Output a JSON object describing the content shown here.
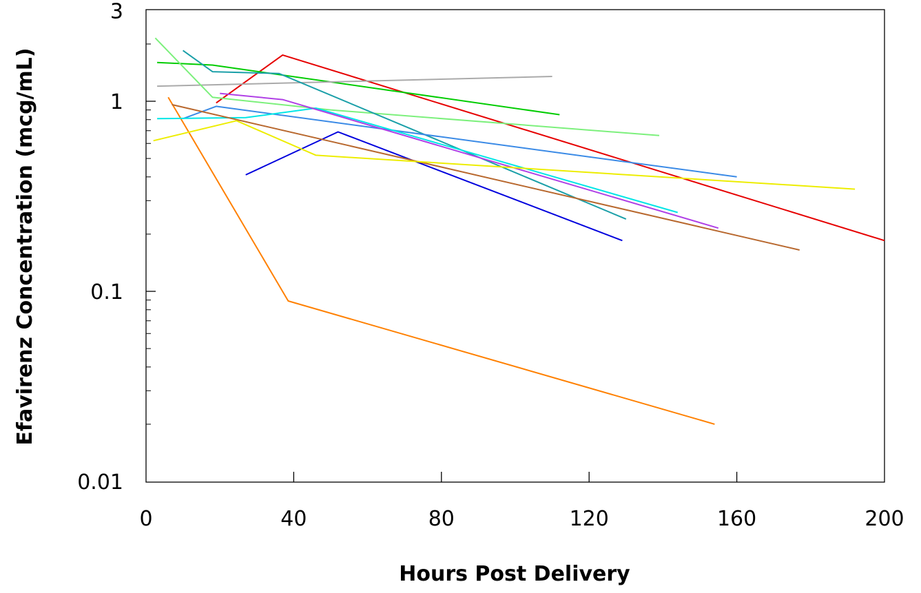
{
  "chart_data": {
    "type": "line",
    "title": "",
    "xlabel": "Hours Post Delivery",
    "ylabel": "Efavirenz Concentration (mcg/mL)",
    "xlim": [
      0,
      200
    ],
    "ylim": [
      0.01,
      3
    ],
    "y_scale": "log",
    "grid": false,
    "legend": "none",
    "x_ticks": [
      0,
      40,
      80,
      120,
      160,
      200
    ],
    "x_tick_labels": [
      "0",
      "40",
      "80",
      "120",
      "160",
      "200"
    ],
    "y_ticks": [
      0.01,
      0.1,
      1,
      3
    ],
    "y_tick_labels": [
      "0.01",
      "0.1",
      "1",
      "3"
    ],
    "series": [
      {
        "color": "#ff8000",
        "x": [
          6,
          38.5,
          154
        ],
        "y": [
          1.05,
          0.089,
          0.02
        ]
      },
      {
        "color": "#e60000",
        "x": [
          19,
          37,
          200
        ],
        "y": [
          0.98,
          1.75,
          0.185
        ]
      },
      {
        "color": "#00cc00",
        "x": [
          3,
          18,
          112
        ],
        "y": [
          1.6,
          1.55,
          0.85
        ]
      },
      {
        "color": "#aaaaaa",
        "x": [
          3,
          110
        ],
        "y": [
          1.2,
          1.35
        ]
      },
      {
        "color": "#7cf07c",
        "x": [
          2.5,
          18,
          50,
          139
        ],
        "y": [
          2.15,
          1.05,
          0.9,
          0.66
        ]
      },
      {
        "color": "#0000dd",
        "x": [
          27,
          52,
          129
        ],
        "y": [
          0.41,
          0.69,
          0.185
        ]
      },
      {
        "color": "#1a9fa8",
        "x": [
          10,
          18,
          36,
          130
        ],
        "y": [
          1.85,
          1.43,
          1.4,
          0.24
        ]
      },
      {
        "color": "#3a8ae6",
        "x": [
          10,
          19,
          160
        ],
        "y": [
          0.81,
          0.94,
          0.4
        ]
      },
      {
        "color": "#00e6e6",
        "x": [
          3,
          27,
          46,
          144
        ],
        "y": [
          0.81,
          0.82,
          0.92,
          0.26
        ]
      },
      {
        "color": "#b040e6",
        "x": [
          20,
          37,
          155
        ],
        "y": [
          1.1,
          1.02,
          0.215
        ]
      },
      {
        "color": "#b8682e",
        "x": [
          7,
          177
        ],
        "y": [
          0.96,
          0.165
        ]
      },
      {
        "color": "#eded00",
        "x": [
          2,
          24.5,
          46,
          192
        ],
        "y": [
          0.62,
          0.79,
          0.52,
          0.345
        ]
      }
    ]
  }
}
